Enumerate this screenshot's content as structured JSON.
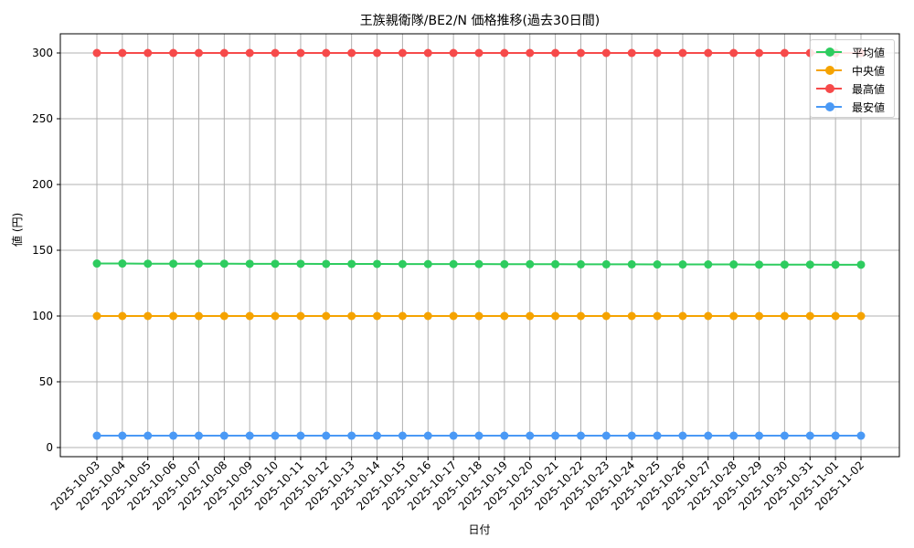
{
  "chart_data": {
    "type": "line",
    "title": "王族親衛隊/BE2/N 価格推移(過去30日間)",
    "xlabel": "日付",
    "ylabel": "値 (円)",
    "ylim": [
      -10,
      315
    ],
    "yticks": [
      0,
      50,
      100,
      150,
      200,
      250,
      300
    ],
    "grid": true,
    "legend_position": "upper right",
    "x": [
      "2025-10-03",
      "2025-10-04",
      "2025-10-05",
      "2025-10-06",
      "2025-10-07",
      "2025-10-08",
      "2025-10-09",
      "2025-10-10",
      "2025-10-11",
      "2025-10-12",
      "2025-10-13",
      "2025-10-14",
      "2025-10-15",
      "2025-10-16",
      "2025-10-17",
      "2025-10-18",
      "2025-10-19",
      "2025-10-20",
      "2025-10-21",
      "2025-10-22",
      "2025-10-23",
      "2025-10-24",
      "2025-10-25",
      "2025-10-26",
      "2025-10-27",
      "2025-10-28",
      "2025-10-29",
      "2025-10-30",
      "2025-10-31",
      "2025-11-01",
      "2025-11-02"
    ],
    "series": [
      {
        "name": "平均値",
        "color": "#2ecc5f",
        "values": [
          139.9,
          139.9,
          139.8,
          139.8,
          139.8,
          139.8,
          139.7,
          139.7,
          139.7,
          139.6,
          139.6,
          139.6,
          139.5,
          139.5,
          139.5,
          139.5,
          139.4,
          139.4,
          139.4,
          139.3,
          139.3,
          139.3,
          139.2,
          139.2,
          139.2,
          139.2,
          139.1,
          139.1,
          139.1,
          139.0,
          139.0
        ]
      },
      {
        "name": "中央値",
        "color": "#f5a300",
        "values": [
          100,
          100,
          100,
          100,
          100,
          100,
          100,
          100,
          100,
          100,
          100,
          100,
          100,
          100,
          100,
          100,
          100,
          100,
          100,
          100,
          100,
          100,
          100,
          100,
          100,
          100,
          100,
          100,
          100,
          100,
          100
        ]
      },
      {
        "name": "最高値",
        "color": "#f64a4a",
        "values": [
          300,
          300,
          300,
          300,
          300,
          300,
          300,
          300,
          300,
          300,
          300,
          300,
          300,
          300,
          300,
          300,
          300,
          300,
          300,
          300,
          300,
          300,
          300,
          300,
          300,
          300,
          300,
          300,
          300,
          300,
          300
        ]
      },
      {
        "name": "最安値",
        "color": "#4a99f5",
        "values": [
          9,
          9,
          9,
          9,
          9,
          9,
          9,
          9,
          9,
          9,
          9,
          9,
          9,
          9,
          9,
          9,
          9,
          9,
          9,
          9,
          9,
          9,
          9,
          9,
          9,
          9,
          9,
          9,
          9,
          9,
          9
        ]
      }
    ]
  }
}
